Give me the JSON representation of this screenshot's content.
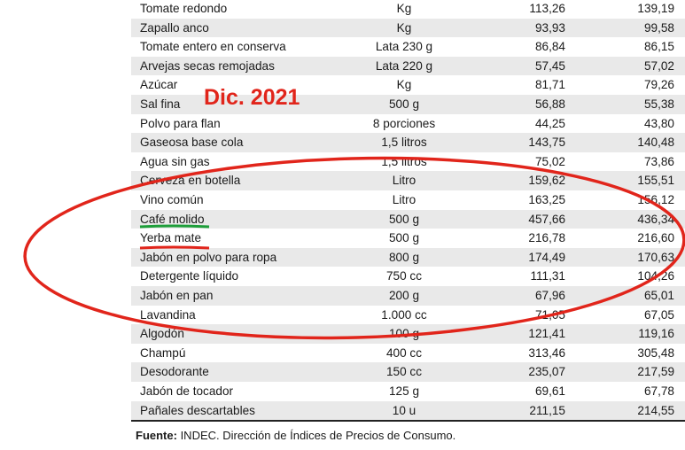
{
  "table": {
    "rows": [
      {
        "name": "Tomate redondo",
        "unit": "Kg",
        "v1": "113,26",
        "v2": "139,19"
      },
      {
        "name": "Zapallo anco",
        "unit": "Kg",
        "v1": "93,93",
        "v2": "99,58"
      },
      {
        "name": "Tomate entero en conserva",
        "unit": "Lata 230 g",
        "v1": "86,84",
        "v2": "86,15"
      },
      {
        "name": "Arvejas secas remojadas",
        "unit": "Lata 220 g",
        "v1": "57,45",
        "v2": "57,02"
      },
      {
        "name": "Azúcar",
        "unit": "Kg",
        "v1": "81,71",
        "v2": "79,26"
      },
      {
        "name": "Sal fina",
        "unit": "500 g",
        "v1": "56,88",
        "v2": "55,38"
      },
      {
        "name": "Polvo para flan",
        "unit": "8 porciones",
        "v1": "44,25",
        "v2": "43,80"
      },
      {
        "name": "Gaseosa base cola",
        "unit": "1,5 litros",
        "v1": "143,75",
        "v2": "140,48"
      },
      {
        "name": "Agua sin gas",
        "unit": "1,5 litros",
        "v1": "75,02",
        "v2": "73,86"
      },
      {
        "name": "Cerveza en botella",
        "unit": "Litro",
        "v1": "159,62",
        "v2": "155,51"
      },
      {
        "name": "Vino común",
        "unit": "Litro",
        "v1": "163,25",
        "v2": "156,12"
      },
      {
        "name": "Café molido",
        "unit": "500 g",
        "v1": "457,66",
        "v2": "436,34"
      },
      {
        "name": "Yerba mate",
        "unit": "500 g",
        "v1": "216,78",
        "v2": "216,60"
      },
      {
        "name": "Jabón en polvo para ropa",
        "unit": "800 g",
        "v1": "174,49",
        "v2": "170,63"
      },
      {
        "name": "Detergente líquido",
        "unit": "750 cc",
        "v1": "111,31",
        "v2": "104,26"
      },
      {
        "name": "Jabón en pan",
        "unit": "200 g",
        "v1": "67,96",
        "v2": "65,01"
      },
      {
        "name": "Lavandina",
        "unit": "1.000 cc",
        "v1": "71,05",
        "v2": "67,05"
      },
      {
        "name": "Algodón",
        "unit": "100 g",
        "v1": "121,41",
        "v2": "119,16"
      },
      {
        "name": "Champú",
        "unit": "400 cc",
        "v1": "313,46",
        "v2": "305,48"
      },
      {
        "name": "Desodorante",
        "unit": "150 cc",
        "v1": "235,07",
        "v2": "217,59"
      },
      {
        "name": "Jabón de tocador",
        "unit": "125 g",
        "v1": "69,61",
        "v2": "67,78"
      },
      {
        "name": "Pañales descartables",
        "unit": "10 u",
        "v1": "211,15",
        "v2": "214,55"
      }
    ]
  },
  "source": {
    "label": "Fuente:",
    "text": " INDEC. Dirección de Índices de Precios de Consumo."
  },
  "annotation": {
    "title": "Dic. 2021",
    "ellipse_color": "#e1251b",
    "green_underline_color": "#1e9e3a",
    "red_underline_color": "#e1251b"
  }
}
